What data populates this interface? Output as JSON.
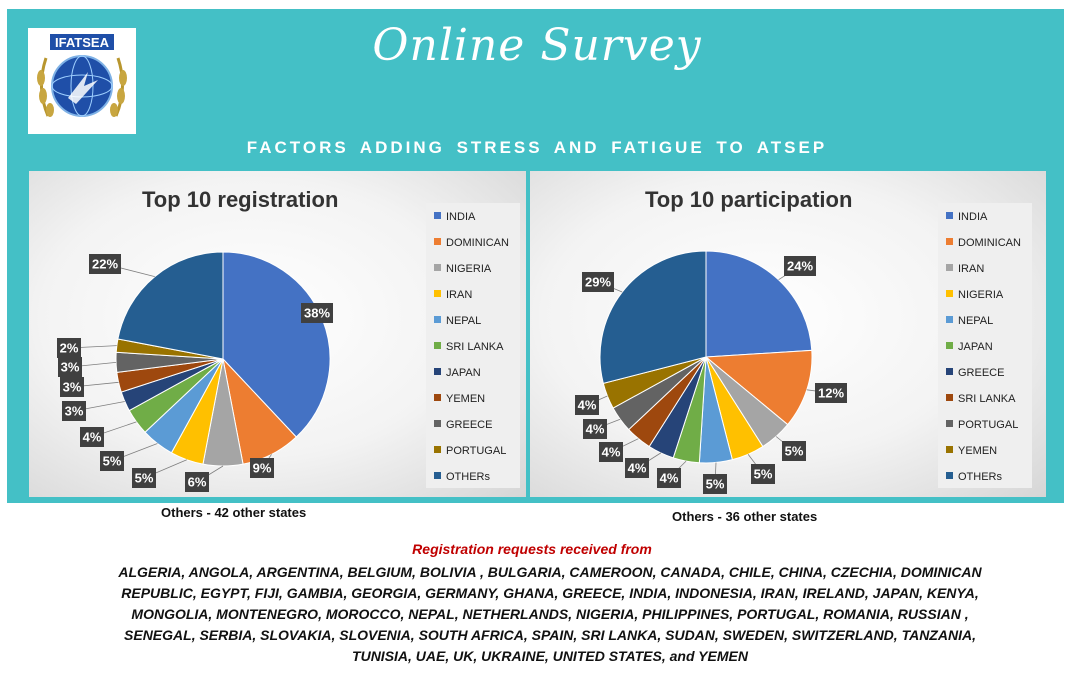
{
  "header": {
    "title": "Online Survey",
    "subtitle": "FACTORS ADDING STRESS AND FATIGUE TO ATSEP",
    "logo_text": "IFATSEA"
  },
  "colors": {
    "banner": "#44c0c6",
    "india": "#4472c4",
    "dominican": "#ed7d31",
    "nigeria": "#a5a5a5",
    "iran": "#ffc000",
    "nepal": "#5b9bd5",
    "sri_lanka": "#70ad47",
    "japan": "#264478",
    "yemen": "#9e480e",
    "greece": "#636363",
    "portugal": "#997300",
    "others": "#255e91",
    "heading_red": "#c00000"
  },
  "chart_data": [
    {
      "type": "pie",
      "title": "Top 10 registration",
      "categories": [
        "INDIA",
        "DOMINICAN",
        "NIGERIA",
        "IRAN",
        "NEPAL",
        "SRI LANKA",
        "JAPAN",
        "YEMEN",
        "GREECE",
        "PORTUGAL",
        "OTHERs"
      ],
      "values": [
        38,
        9,
        6,
        5,
        5,
        4,
        3,
        3,
        3,
        2,
        22
      ],
      "labels": [
        "38%",
        "9%",
        "6%",
        "5%",
        "5%",
        "4%",
        "3%",
        "3%",
        "3%",
        "2%",
        "22%"
      ],
      "colors": [
        "#4472c4",
        "#ed7d31",
        "#a5a5a5",
        "#ffc000",
        "#5b9bd5",
        "#70ad47",
        "#264478",
        "#9e480e",
        "#636363",
        "#997300",
        "#255e91"
      ],
      "legend": "right",
      "note": "Others - 42 other states"
    },
    {
      "type": "pie",
      "title": "Top 10 participation",
      "categories": [
        "INDIA",
        "DOMINICAN",
        "IRAN",
        "NIGERIA",
        "NEPAL",
        "JAPAN",
        "GREECE",
        "SRI LANKA",
        "PORTUGAL",
        "YEMEN",
        "OTHERs"
      ],
      "values": [
        24,
        12,
        5,
        5,
        5,
        4,
        4,
        4,
        4,
        4,
        29
      ],
      "labels": [
        "24%",
        "12%",
        "5%",
        "5%",
        "5%",
        "4%",
        "4%",
        "4%",
        "4%",
        "4%",
        "29%"
      ],
      "colors": [
        "#4472c4",
        "#ed7d31",
        "#a5a5a5",
        "#ffc000",
        "#5b9bd5",
        "#70ad47",
        "#264478",
        "#9e480e",
        "#636363",
        "#997300",
        "#255e91"
      ],
      "legend": "right",
      "note": "Others - 36 other states"
    }
  ],
  "registrations": {
    "heading": "Registration requests received from",
    "countries": "ALGERIA, ANGOLA, ARGENTINA, BELGIUM, BOLIVIA , BULGARIA, CAMEROON, CANADA, CHILE, CHINA, CZECHIA, DOMINICAN REPUBLIC, EGYPT, FIJI, GAMBIA, GEORGIA, GERMANY, GHANA, GREECE, INDIA, INDONESIA, IRAN, IRELAND, JAPAN, KENYA, MONGOLIA, MONTENEGRO, MOROCCO, NEPAL, NETHERLANDS, NIGERIA, PHILIPPINES, PORTUGAL, ROMANIA, RUSSIAN , SENEGAL, SERBIA, SLOVAKIA, SLOVENIA, SOUTH AFRICA, SPAIN, SRI LANKA, SUDAN, SWEDEN, SWITZERLAND, TANZANIA, TUNISIA, UAE, UK, UKRAINE, UNITED STATES, and YEMEN"
  }
}
